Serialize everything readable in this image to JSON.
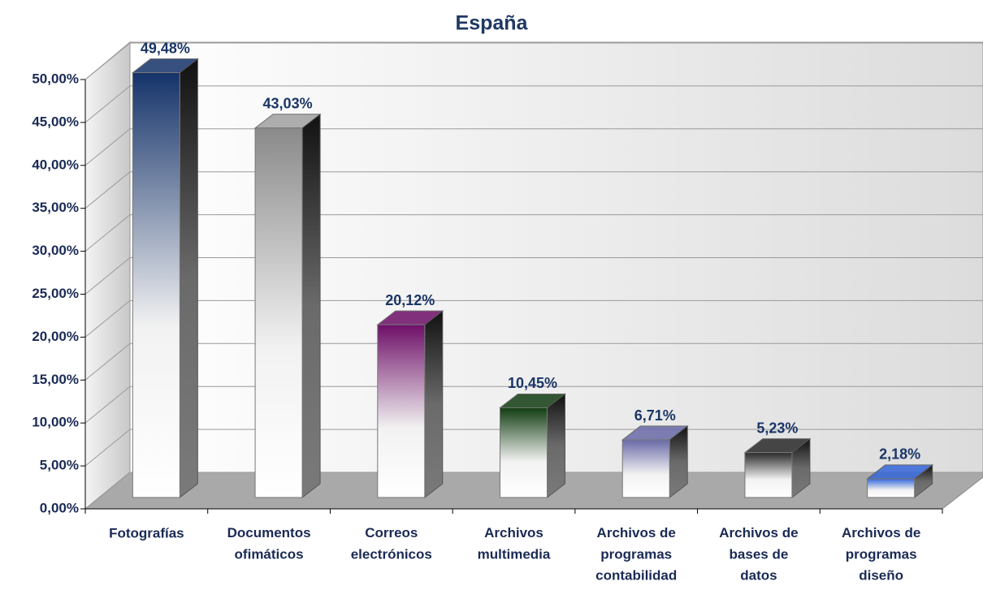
{
  "chart_data": {
    "type": "bar3d",
    "title": "España",
    "categories": [
      "Fotografías",
      "Documentos\nofimáticos",
      "Correos\nelectrónicos",
      "Archivos\nmultimedia",
      "Archivos de\nprogramas\ncontabilidad",
      "Archivos de\nbases de\ndatos",
      "Archivos de\nprogramas\ndiseño"
    ],
    "values": [
      49.48,
      43.03,
      20.12,
      10.45,
      6.71,
      5.23,
      2.18
    ],
    "value_labels": [
      "49,48%",
      "43,03%",
      "20,12%",
      "10,45%",
      "6,71%",
      "5,23%",
      "2,18%"
    ],
    "colors": [
      "#15336a",
      "#8a8a8a",
      "#6e0f68",
      "#123d12",
      "#6a6aa8",
      "#2a2a2a",
      "#3466d8"
    ],
    "ylim": [
      0,
      50
    ],
    "yticks": [
      {
        "value": 0,
        "label": "0,00%"
      },
      {
        "value": 5,
        "label": "5,00%"
      },
      {
        "value": 10,
        "label": "10,00%"
      },
      {
        "value": 15,
        "label": "15,00%"
      },
      {
        "value": 20,
        "label": "20,00%"
      },
      {
        "value": 25,
        "label": "25,00%"
      },
      {
        "value": 30,
        "label": "30,00%"
      },
      {
        "value": 35,
        "label": "35,00%"
      },
      {
        "value": 40,
        "label": "40,00%"
      },
      {
        "value": 45,
        "label": "45,00%"
      },
      {
        "value": 50,
        "label": "50,00%"
      }
    ],
    "grid": true
  }
}
